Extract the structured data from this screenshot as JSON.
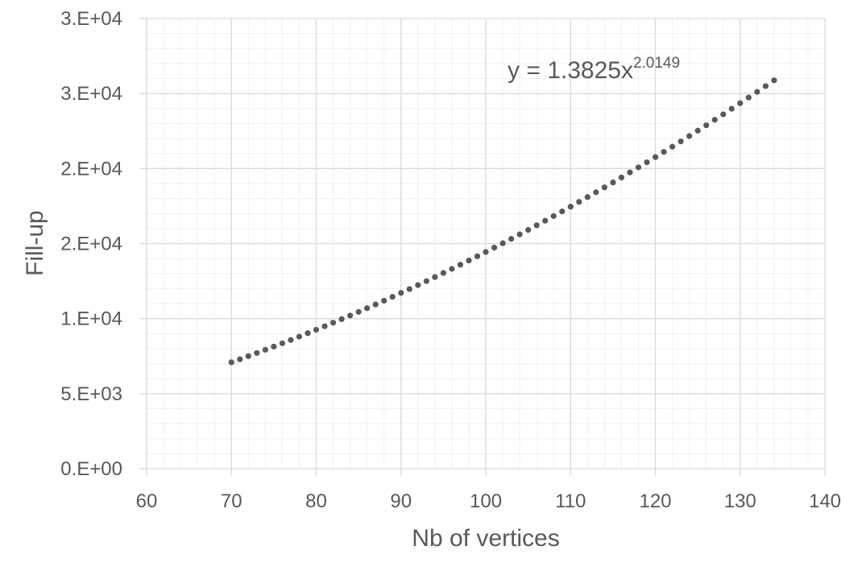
{
  "chart_data": {
    "type": "scatter",
    "title": "",
    "xlabel": "Nb of vertices",
    "ylabel": "Fill-up",
    "xlim": [
      60,
      140
    ],
    "ylim": [
      0,
      30000
    ],
    "x_ticks": [
      60,
      70,
      80,
      90,
      100,
      110,
      120,
      130,
      140
    ],
    "x_tick_labels": [
      "60",
      "70",
      "80",
      "90",
      "100",
      "110",
      "120",
      "130",
      "140"
    ],
    "y_ticks": [
      0,
      5000,
      10000,
      15000,
      20000,
      25000,
      30000
    ],
    "y_tick_labels": [
      "0.E+00",
      "5.E+03",
      "1.E+04",
      "2.E+04",
      "2.E+04",
      "3.E+04",
      "3.E+04"
    ],
    "grid": true,
    "minor_grid": true,
    "legend": "none",
    "colors": {
      "marker": "#595959",
      "major_grid": "#d9d9d9",
      "minor_grid": "#f0f0f0"
    },
    "trendline": {
      "type": "power",
      "a": 1.3825,
      "b": 2.0149,
      "label_base": "y = 1.3825x",
      "label_exponent": "2.0149"
    },
    "series": [
      {
        "x": [
          70,
          71,
          72,
          73,
          74,
          75,
          76,
          77,
          78,
          79,
          80,
          81,
          82,
          83,
          84,
          85,
          86,
          87,
          88,
          89,
          90,
          91,
          92,
          93,
          94,
          95,
          96,
          97,
          98,
          99,
          100,
          101,
          102,
          103,
          104,
          105,
          106,
          107,
          108,
          109,
          110,
          111,
          112,
          113,
          114,
          115,
          116,
          117,
          118,
          119,
          120,
          121,
          122,
          123,
          124,
          125,
          126,
          127,
          128,
          129,
          130,
          131,
          132,
          133,
          134
        ],
        "y": [
          7090,
          7294,
          7502,
          7712,
          7925,
          8140,
          8359,
          8580,
          8804,
          9031,
          9261,
          9493,
          9729,
          9967,
          10208,
          10451,
          10698,
          10947,
          11199,
          11454,
          11712,
          11972,
          12236,
          12502,
          12771,
          13043,
          13317,
          13595,
          13875,
          14158,
          14444,
          14733,
          15025,
          15319,
          15617,
          15917,
          16220,
          16526,
          16835,
          17147,
          17461,
          17779,
          18099,
          18422,
          18748,
          19077,
          19409,
          19744,
          20082,
          20422,
          20766,
          21112,
          21461,
          21813,
          22169,
          22527,
          22887,
          23251,
          23618,
          23988,
          24360,
          24736,
          25114,
          25496,
          25880
        ]
      }
    ]
  }
}
